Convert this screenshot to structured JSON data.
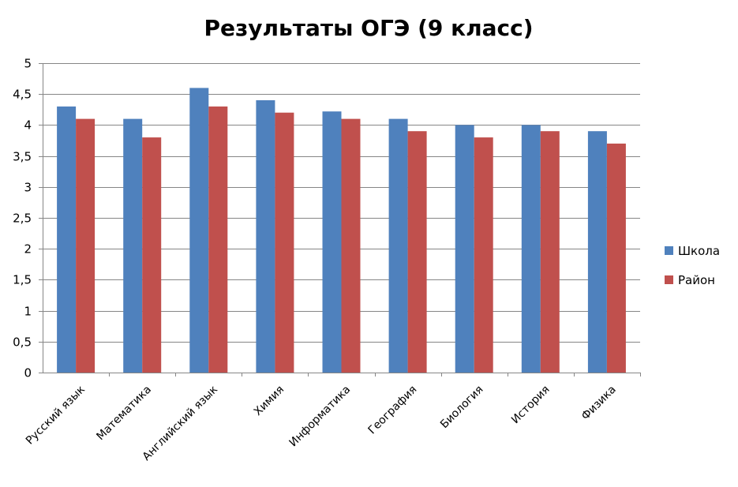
{
  "chart_data": {
    "type": "bar",
    "title": "Результаты ОГЭ (9 класс)",
    "categories": [
      "Русский язык",
      "Математика",
      "Английский язык",
      "Химия",
      "Информатика",
      "География",
      "Биология",
      "История",
      "Физика"
    ],
    "series": [
      {
        "name": "Школа",
        "color": "#4f81bd",
        "values": [
          4.3,
          4.1,
          4.6,
          4.4,
          4.22,
          4.1,
          4.0,
          4.0,
          3.9
        ]
      },
      {
        "name": "Район",
        "color": "#c0504d",
        "values": [
          4.1,
          3.8,
          4.3,
          4.2,
          4.1,
          3.9,
          3.8,
          3.9,
          3.7
        ]
      }
    ],
    "yticks": [
      "0",
      "0,5",
      "1",
      "1,5",
      "2",
      "2,5",
      "3",
      "3,5",
      "4",
      "4,5",
      "5"
    ],
    "ylim": [
      0,
      5
    ],
    "ystep": 0.5,
    "grid": true,
    "legend_position": "right",
    "xlabel": "",
    "ylabel": ""
  }
}
